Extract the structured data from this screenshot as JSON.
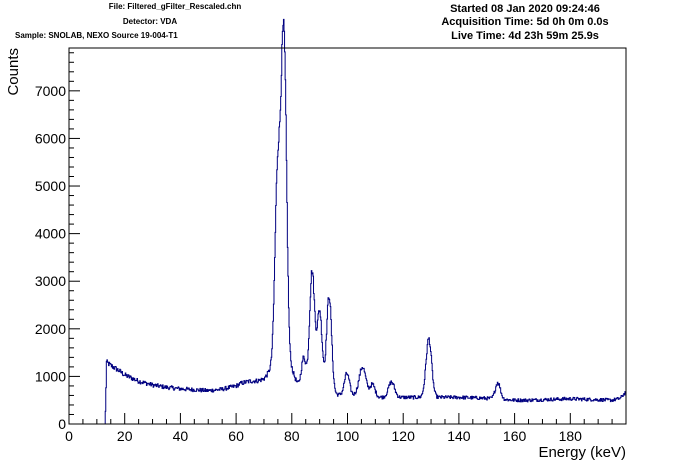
{
  "header": {
    "file": "File: Filtered_gFilter_Rescaled.chn",
    "detector": "Detector: VDA",
    "sample": "Sample: SNOLAB, NEXO Source 19-004-T1",
    "started": "Started 08 Jan 2020 09:24:46",
    "acquisition_time": "Acquisition Time: 5d 0h 0m 0.0s",
    "live_time": "Live Time: 4d 23h 59m 25.9s"
  },
  "chart_data": {
    "type": "line",
    "title": "",
    "xlabel": "Energy (keV)",
    "ylabel": "Counts",
    "xlim": [
      0,
      200
    ],
    "ylim": [
      0,
      7900
    ],
    "x_ticks": [
      0,
      20,
      40,
      60,
      80,
      100,
      120,
      140,
      160,
      180
    ],
    "y_ticks": [
      0,
      1000,
      2000,
      3000,
      4000,
      5000,
      6000,
      7000
    ],
    "grid": false,
    "line_color": "#000080",
    "histogram_step": true,
    "baseline": {
      "x": [
        0,
        13,
        13.5,
        15,
        18,
        20,
        25,
        30,
        35,
        40,
        45,
        50,
        55,
        60,
        62,
        65,
        68,
        70,
        72,
        80,
        82,
        84,
        90,
        95,
        100,
        105,
        110,
        115,
        120,
        125,
        130,
        135,
        140,
        145,
        150,
        155,
        160,
        165,
        170,
        175,
        180,
        185,
        190,
        195,
        198,
        200
      ],
      "y": [
        0,
        0,
        1300,
        1230,
        1120,
        1030,
        900,
        820,
        770,
        740,
        720,
        700,
        730,
        800,
        860,
        900,
        910,
        950,
        1100,
        1150,
        850,
        800,
        720,
        620,
        600,
        600,
        570,
        550,
        560,
        560,
        560,
        560,
        560,
        550,
        540,
        520,
        500,
        500,
        510,
        520,
        530,
        520,
        510,
        500,
        540,
        680
      ]
    },
    "peaks": [
      {
        "center": 75.0,
        "height": 4350,
        "width": 1.0
      },
      {
        "center": 77.3,
        "height": 6400,
        "width": 0.9
      },
      {
        "center": 76.4,
        "height": 1000,
        "width": 0.6
      },
      {
        "center": 84.3,
        "height": 600,
        "width": 0.8
      },
      {
        "center": 87.3,
        "height": 2450,
        "width": 0.9
      },
      {
        "center": 90.0,
        "height": 1650,
        "width": 0.9
      },
      {
        "center": 93.4,
        "height": 2050,
        "width": 0.9
      },
      {
        "center": 99.8,
        "height": 460,
        "width": 0.9
      },
      {
        "center": 105.4,
        "height": 600,
        "width": 1.2
      },
      {
        "center": 109.0,
        "height": 250,
        "width": 0.9
      },
      {
        "center": 115.8,
        "height": 330,
        "width": 1.1
      },
      {
        "center": 129.2,
        "height": 1230,
        "width": 1.0
      },
      {
        "center": 154.0,
        "height": 350,
        "width": 0.9
      }
    ]
  }
}
